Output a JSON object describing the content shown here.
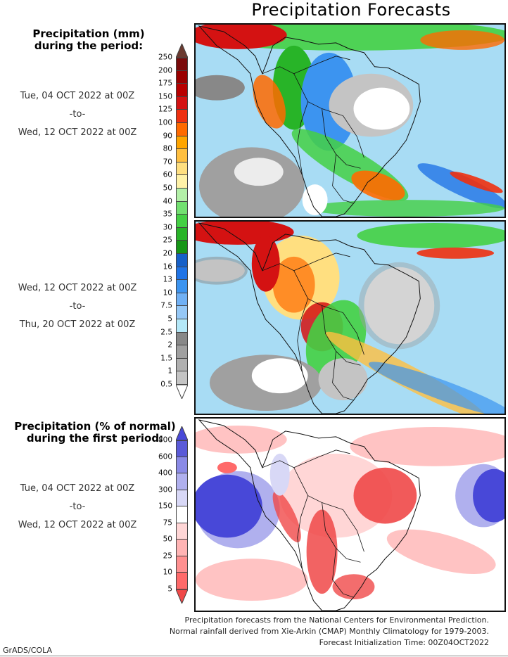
{
  "title": "Precipitation Forecasts",
  "panels": [
    {
      "id": "period1-precip",
      "legend_title": [
        "Precipitation (mm)",
        "during the period:"
      ],
      "period": [
        "Tue, 04 OCT 2022 at 00Z",
        "-to-",
        "Wed, 12 OCT 2022 at 00Z"
      ]
    },
    {
      "id": "period2-precip",
      "period": [
        "Wed, 12 OCT 2022 at 00Z",
        "-to-",
        "Thu, 20 OCT 2022 at 00Z"
      ]
    },
    {
      "id": "period1-percent-normal",
      "legend_title": [
        "Precipitation (% of normal)",
        "during the first period:"
      ],
      "period": [
        "Tue, 04 OCT 2022 at 00Z",
        "-to-",
        "Wed, 12 OCT 2022 at 00Z"
      ]
    }
  ],
  "precip_scale": {
    "unit": "mm",
    "ticks": [
      "250",
      "200",
      "175",
      "150",
      "125",
      "100",
      "90",
      "80",
      "70",
      "60",
      "50",
      "40",
      "35",
      "30",
      "25",
      "20",
      "16",
      "13",
      "10",
      "7.5",
      "5",
      "2.5",
      "2",
      "1.5",
      "1",
      "0.5"
    ],
    "colors": [
      "#7a0a0a",
      "#9a0000",
      "#b80000",
      "#d41212",
      "#ee3010",
      "#ff6a00",
      "#ffa500",
      "#ffbf40",
      "#ffdf80",
      "#fff2a8",
      "#b3f0a8",
      "#72e070",
      "#44d044",
      "#28b428",
      "#169616",
      "#1660c8",
      "#2074e6",
      "#3c94f0",
      "#70b0f4",
      "#96c8f6",
      "#b4e8f8",
      "#888888",
      "#a0a0a0",
      "#b0b0b0",
      "#c4c4c4"
    ],
    "over_color": "#6b3a30",
    "under_color": "#ffffff"
  },
  "percent_scale": {
    "unit": "% of normal",
    "ticks": [
      "800",
      "600",
      "400",
      "300",
      "150",
      "75",
      "50",
      "25",
      "10",
      "5"
    ],
    "colors": [
      "#5a5ad8",
      "#8a8ae6",
      "#b0b0ee",
      "#d8d8f6",
      "#ffffff",
      "#ffd6d6",
      "#ffb4b4",
      "#ff9090",
      "#ff6a6a"
    ],
    "over_color": "#4848d8",
    "under_color": "#f04848"
  },
  "credits": [
    "Precipitation forecasts from the National Centers for Environmental Prediction.",
    "Normal rainfall derived from Xie-Arkin (CMAP) Monthly Climatology for 1979-2003.",
    "Forecast Initialization Time: 00Z04OCT2022"
  ],
  "software_label": "GrADS/COLA"
}
